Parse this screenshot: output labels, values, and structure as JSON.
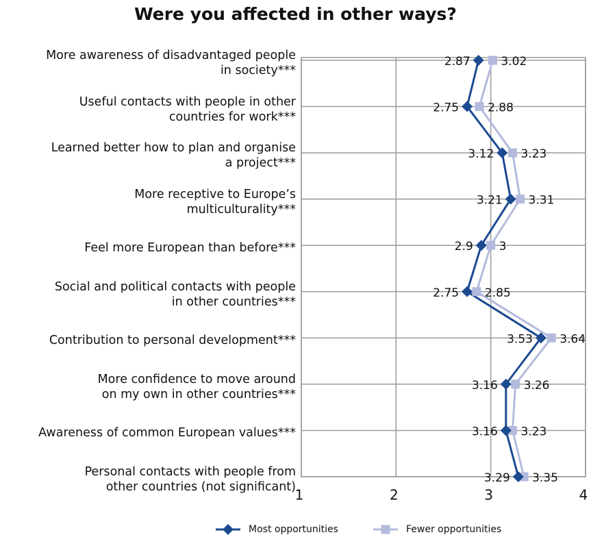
{
  "chart_data": {
    "type": "line",
    "orientation": "horizontal",
    "title": "Were you affected in other ways?",
    "categories": [
      "More awareness of disadvantaged people\nin society***",
      "Useful contacts with people in other\ncountries for work***",
      "Learned better how to plan and organise\na project***",
      "More receptive to Europe’s\nmulticulturality***",
      "Feel more European than before***",
      "Social and political contacts with people\nin other countries***",
      "Contribution to personal development***",
      "More confidence to move around\non my own in other countries***",
      "Awareness of common European values***",
      "Personal contacts with people from\nother countries (not significant)"
    ],
    "series": [
      {
        "name": "Most opportunities",
        "color": "#1b4a91",
        "marker": "diamond",
        "values": [
          2.87,
          2.75,
          3.12,
          3.21,
          2.9,
          2.75,
          3.53,
          3.16,
          3.16,
          3.29
        ]
      },
      {
        "name": "Fewer opportunities",
        "color": "#b4badd",
        "marker": "square",
        "values": [
          3.02,
          2.88,
          3.23,
          3.31,
          3,
          2.85,
          3.64,
          3.26,
          3.23,
          3.35
        ]
      }
    ],
    "xlim": [
      1,
      4
    ],
    "xticks": [
      1,
      2,
      3,
      4
    ],
    "grid": true,
    "legend": "bottom"
  }
}
